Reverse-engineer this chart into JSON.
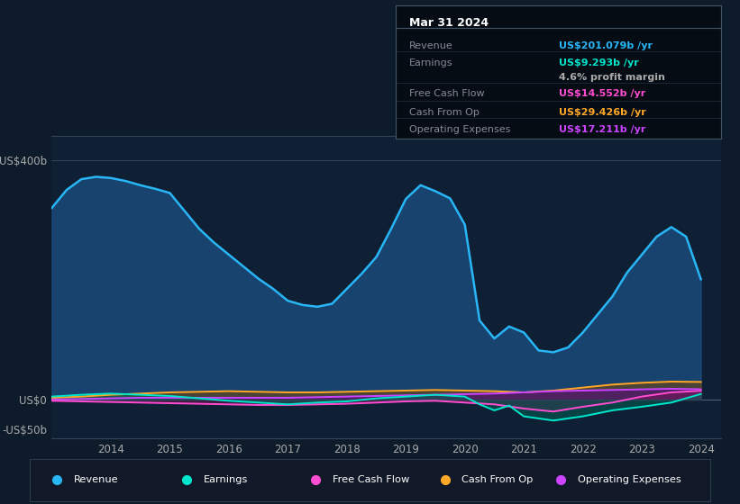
{
  "bg_color": "#0d1b2a",
  "plot_bg_color": "#0f2035",
  "ylim": [
    -65,
    440
  ],
  "yticks": [
    -50,
    0,
    400
  ],
  "ytick_labels": [
    "-US$50b",
    "US$0",
    "US$400b"
  ],
  "xticks": [
    2014,
    2015,
    2016,
    2017,
    2018,
    2019,
    2020,
    2021,
    2022,
    2023,
    2024
  ],
  "revenue_color": "#29b6f6",
  "revenue_fill": "#1a4a7a",
  "earnings_color": "#00e5cc",
  "fcf_color": "#ff4dd2",
  "cashfromop_color": "#ffa726",
  "opex_color": "#cc44ff",
  "revenue": {
    "x": [
      2013.0,
      2013.25,
      2013.5,
      2013.75,
      2014.0,
      2014.25,
      2014.5,
      2014.75,
      2015.0,
      2015.25,
      2015.5,
      2015.75,
      2016.0,
      2016.25,
      2016.5,
      2016.75,
      2017.0,
      2017.25,
      2017.5,
      2017.75,
      2018.0,
      2018.25,
      2018.5,
      2018.75,
      2019.0,
      2019.25,
      2019.5,
      2019.75,
      2020.0,
      2020.25,
      2020.5,
      2020.75,
      2021.0,
      2021.25,
      2021.5,
      2021.75,
      2022.0,
      2022.25,
      2022.5,
      2022.75,
      2023.0,
      2023.25,
      2023.5,
      2023.75,
      2024.0
    ],
    "y": [
      320,
      350,
      368,
      372,
      370,
      365,
      358,
      352,
      345,
      315,
      285,
      262,
      242,
      222,
      202,
      185,
      165,
      158,
      155,
      160,
      185,
      210,
      238,
      285,
      335,
      358,
      348,
      336,
      292,
      132,
      102,
      122,
      112,
      82,
      79,
      87,
      112,
      142,
      172,
      212,
      242,
      272,
      288,
      272,
      201
    ],
    "fill_color": "#1a4a7a",
    "line_color": "#29b6f6"
  },
  "earnings": {
    "x": [
      2013.0,
      2013.5,
      2014.0,
      2014.5,
      2015.0,
      2015.5,
      2016.0,
      2016.5,
      2017.0,
      2017.5,
      2018.0,
      2018.5,
      2019.0,
      2019.5,
      2020.0,
      2020.25,
      2020.5,
      2020.75,
      2021.0,
      2021.5,
      2022.0,
      2022.5,
      2023.0,
      2023.5,
      2024.0
    ],
    "y": [
      5,
      8,
      10,
      8,
      6,
      2,
      -2,
      -5,
      -8,
      -5,
      -3,
      2,
      5,
      8,
      5,
      -8,
      -18,
      -10,
      -28,
      -35,
      -28,
      -18,
      -12,
      -5,
      9.3
    ],
    "fill_color": "#006655",
    "line_color": "#00e5cc"
  },
  "fcf": {
    "x": [
      2013.0,
      2013.5,
      2014.0,
      2014.5,
      2015.0,
      2015.5,
      2016.0,
      2016.5,
      2017.0,
      2017.5,
      2018.0,
      2018.5,
      2019.0,
      2019.5,
      2020.0,
      2020.5,
      2021.0,
      2021.5,
      2022.0,
      2022.5,
      2023.0,
      2023.5,
      2024.0
    ],
    "y": [
      -2,
      -3,
      -4,
      -5,
      -6,
      -7,
      -8,
      -9,
      -9,
      -8,
      -7,
      -5,
      -3,
      -2,
      -5,
      -8,
      -15,
      -20,
      -12,
      -5,
      5,
      12,
      14.6
    ],
    "fill_color": "#7a1555",
    "line_color": "#ff4dd2"
  },
  "cashfromop": {
    "x": [
      2013.0,
      2013.5,
      2014.0,
      2014.5,
      2015.0,
      2015.5,
      2016.0,
      2016.5,
      2017.0,
      2017.5,
      2018.0,
      2018.5,
      2019.0,
      2019.5,
      2020.0,
      2020.5,
      2021.0,
      2021.5,
      2022.0,
      2022.5,
      2023.0,
      2023.5,
      2024.0
    ],
    "y": [
      3,
      5,
      8,
      10,
      12,
      13,
      14,
      13,
      12,
      12,
      13,
      14,
      15,
      16,
      15,
      14,
      12,
      15,
      20,
      25,
      28,
      30,
      29.4
    ],
    "fill_color": "#7a4500",
    "line_color": "#ffa726"
  },
  "opex": {
    "x": [
      2013.0,
      2013.5,
      2014.0,
      2014.5,
      2015.0,
      2015.5,
      2016.0,
      2016.5,
      2017.0,
      2017.5,
      2018.0,
      2018.5,
      2019.0,
      2019.5,
      2020.0,
      2020.5,
      2021.0,
      2021.5,
      2022.0,
      2022.5,
      2023.0,
      2023.5,
      2024.0
    ],
    "y": [
      0,
      1,
      2,
      3,
      3,
      3,
      3,
      3,
      3,
      4,
      5,
      6,
      7,
      8,
      9,
      10,
      12,
      14,
      15,
      16,
      17,
      18,
      17.2
    ],
    "fill_color": "#550088",
    "line_color": "#cc44ff"
  },
  "tooltip": {
    "date": "Mar 31 2024",
    "rows": [
      {
        "label": "Revenue",
        "value": "US$201.079b /yr",
        "color": "#29b6f6"
      },
      {
        "label": "Earnings",
        "value": "US$9.293b /yr",
        "color": "#00e5cc"
      },
      {
        "label": "",
        "value": "4.6% profit margin",
        "color": "#aaaaaa"
      },
      {
        "label": "Free Cash Flow",
        "value": "US$14.552b /yr",
        "color": "#ff4dd2"
      },
      {
        "label": "Cash From Op",
        "value": "US$29.426b /yr",
        "color": "#ffa726"
      },
      {
        "label": "Operating Expenses",
        "value": "US$17.211b /yr",
        "color": "#cc44ff"
      }
    ]
  },
  "legend": [
    {
      "label": "Revenue",
      "color": "#29b6f6"
    },
    {
      "label": "Earnings",
      "color": "#00e5cc"
    },
    {
      "label": "Free Cash Flow",
      "color": "#ff4dd2"
    },
    {
      "label": "Cash From Op",
      "color": "#ffa726"
    },
    {
      "label": "Operating Expenses",
      "color": "#cc44ff"
    }
  ]
}
